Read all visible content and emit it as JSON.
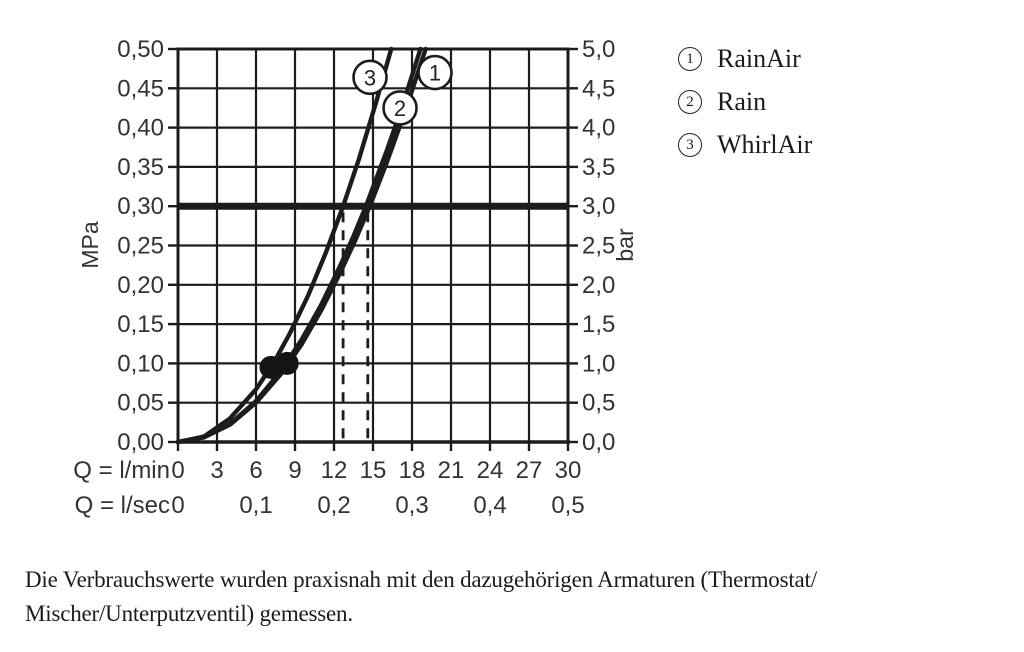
{
  "chart_data": {
    "type": "line",
    "title": "",
    "grid": true,
    "x_axis_primary": {
      "label": "Q = l/min",
      "min": 0,
      "max": 30,
      "tick_step": 3,
      "tick_values": [
        0,
        3,
        6,
        9,
        12,
        15,
        18,
        21,
        24,
        27,
        30
      ],
      "tick_labels": [
        "0",
        "3",
        "6",
        "9",
        "12",
        "15",
        "18",
        "21",
        "24",
        "27",
        "30"
      ]
    },
    "x_axis_secondary": {
      "label": "Q = l/sec",
      "ticks": [
        {
          "q_lmin": 0,
          "label": "0"
        },
        {
          "q_lmin": 6,
          "label": "0,1"
        },
        {
          "q_lmin": 12,
          "label": "0,2"
        },
        {
          "q_lmin": 18,
          "label": "0,3"
        },
        {
          "q_lmin": 24,
          "label": "0,4"
        },
        {
          "q_lmin": 30,
          "label": "0,5"
        }
      ]
    },
    "y_axis_left": {
      "label": "MPa",
      "min": 0,
      "max": 0.5,
      "tick_step": 0.05,
      "tick_values": [
        0,
        0.05,
        0.1,
        0.15,
        0.2,
        0.25,
        0.3,
        0.35,
        0.4,
        0.45,
        0.5
      ],
      "tick_labels": [
        "0,00",
        "0,05",
        "0,10",
        "0,15",
        "0,20",
        "0,25",
        "0,30",
        "0,35",
        "0,40",
        "0,45",
        "0,50"
      ]
    },
    "y_axis_right": {
      "label": "bar",
      "min": 0,
      "max": 5,
      "tick_step": 0.5,
      "tick_values": [
        0,
        0.5,
        1.0,
        1.5,
        2.0,
        2.5,
        3.0,
        3.5,
        4.0,
        4.5,
        5.0
      ],
      "tick_labels": [
        "0,0",
        "0,5",
        "1,0",
        "1,5",
        "2,0",
        "2,5",
        "3,0",
        "3,5",
        "4,0",
        "4,5",
        "5,0"
      ]
    },
    "reference_line_mpa": 0.3,
    "dashed_guides_lmin": [
      12.7,
      14.6
    ],
    "flow_markers": [
      {
        "q_lmin": 7.15,
        "mpa": 0.095
      },
      {
        "q_lmin": 8.4,
        "mpa": 0.1
      }
    ],
    "series": [
      {
        "number": "1",
        "name": "RainAir",
        "q_at_3bar_lmin": 14.75,
        "label_pos": {
          "q_lmin": 19.77,
          "mpa": 0.47
        },
        "points": [
          [
            0,
            0
          ],
          [
            2,
            0.006
          ],
          [
            4,
            0.022
          ],
          [
            6,
            0.05
          ],
          [
            8,
            0.088
          ],
          [
            9.5,
            0.124
          ],
          [
            11,
            0.167
          ],
          [
            12.5,
            0.216
          ],
          [
            13.7,
            0.259
          ],
          [
            14.75,
            0.3
          ],
          [
            16,
            0.353
          ],
          [
            17,
            0.399
          ],
          [
            18,
            0.447
          ],
          [
            19.05,
            0.5
          ]
        ]
      },
      {
        "number": "2",
        "name": "Rain",
        "q_at_3bar_lmin": 14.45,
        "label_pos": {
          "q_lmin": 17.08,
          "mpa": 0.425
        },
        "points": [
          [
            0,
            0
          ],
          [
            2,
            0.006
          ],
          [
            4,
            0.023
          ],
          [
            6,
            0.052
          ],
          [
            8,
            0.092
          ],
          [
            9.5,
            0.13
          ],
          [
            11,
            0.174
          ],
          [
            12.5,
            0.225
          ],
          [
            13.5,
            0.262
          ],
          [
            14.45,
            0.3
          ],
          [
            16,
            0.368
          ],
          [
            17,
            0.415
          ],
          [
            18,
            0.466
          ],
          [
            18.65,
            0.5
          ]
        ]
      },
      {
        "number": "3",
        "name": "WhirlAir",
        "q_at_3bar_lmin": 12.7,
        "label_pos": {
          "q_lmin": 14.77,
          "mpa": 0.464
        },
        "points": [
          [
            0,
            0
          ],
          [
            2,
            0.007
          ],
          [
            4,
            0.03
          ],
          [
            6,
            0.067
          ],
          [
            7.3,
            0.099
          ],
          [
            8.6,
            0.138
          ],
          [
            10,
            0.186
          ],
          [
            11.4,
            0.242
          ],
          [
            12.7,
            0.3
          ],
          [
            13.9,
            0.359
          ],
          [
            15.2,
            0.43
          ],
          [
            16.4,
            0.5
          ]
        ]
      }
    ],
    "legend": [
      {
        "number": "1",
        "label": "RainAir"
      },
      {
        "number": "2",
        "label": "Rain"
      },
      {
        "number": "3",
        "label": "WhirlAir"
      }
    ],
    "colors": {
      "line": "#1c1c1c",
      "grid": "#1c1c1c",
      "text": "#333333",
      "marker": "#141414",
      "background": "#ffffff"
    }
  },
  "footnote": {
    "lines": [
      "Die Verbrauchswerte wurden praxisnah mit den dazugehörigen Armaturen (Thermostat/",
      "Mischer/Unterputzventil) gemessen."
    ]
  }
}
